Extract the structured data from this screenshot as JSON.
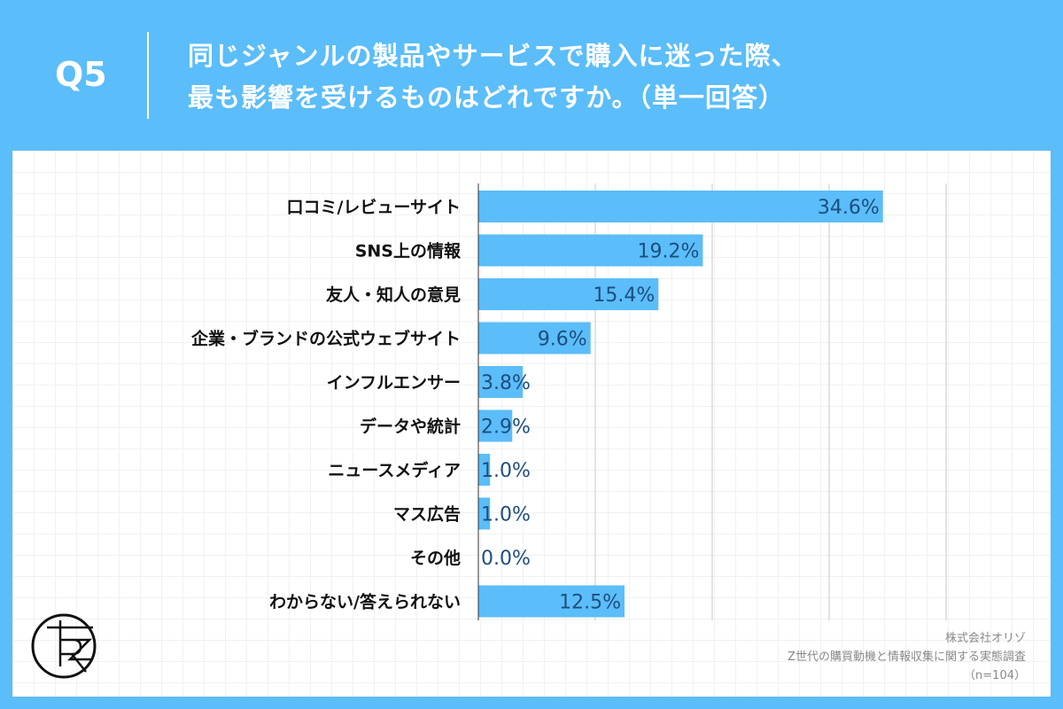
{
  "question_no": "Q5",
  "title_lines": [
    "同じジャンルの製品やサービスで購入に迷った際、",
    "最も影響を受けるものはどれですか。（単一回答）"
  ],
  "colors": {
    "background": "#5bbdf9",
    "bar": "#5bbdf9",
    "value_text": "#1d4e7e"
  },
  "chart_data": {
    "type": "bar",
    "orientation": "horizontal",
    "categories": [
      "口コミ/レビューサイト",
      "SNS上の情報",
      "友人・知人の意見",
      "企業・ブランドの公式ウェブサイト",
      "インフルエンサー",
      "データや統計",
      "ニュースメディア",
      "マス広告",
      "その他",
      "わからない/答えられない"
    ],
    "values": [
      34.6,
      19.2,
      15.4,
      9.6,
      3.8,
      2.9,
      1.0,
      1.0,
      0.0,
      12.5
    ],
    "unit": "%",
    "xlim": [
      0,
      40
    ],
    "grid": true
  },
  "footer": {
    "company": "株式会社オリゾ",
    "survey": "Z世代の購買動機と情報収集に関する実態調査",
    "sample": "（n=104）"
  },
  "logo": {
    "text": "RZ"
  }
}
